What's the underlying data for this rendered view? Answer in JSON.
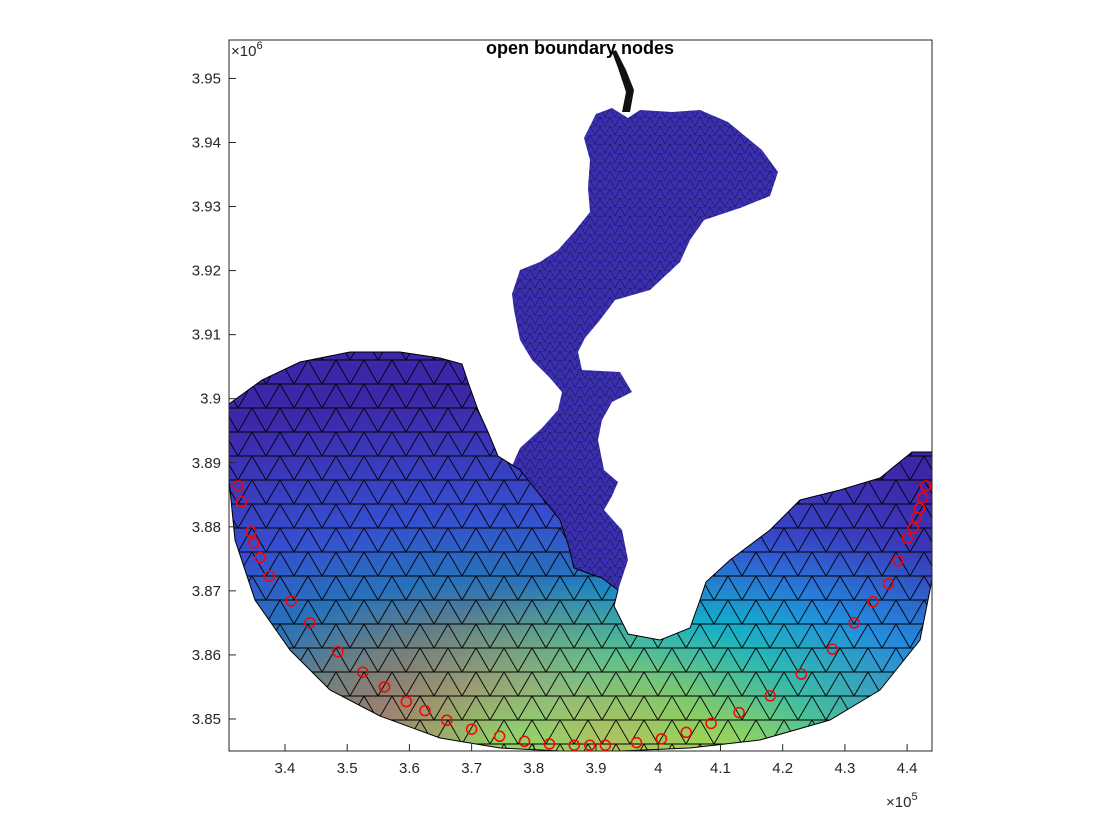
{
  "chart_data": {
    "type": "scatter",
    "title": "open boundary nodes",
    "xlabel": "",
    "ylabel": "",
    "x_exponent_label": "×10",
    "x_exponent_power": "5",
    "y_exponent_label": "×10",
    "y_exponent_power": "6",
    "xlim": [
      3.31,
      4.44
    ],
    "ylim": [
      3.845,
      3.956
    ],
    "x_ticks": [
      3.4,
      3.5,
      3.6,
      3.7,
      3.8,
      3.9,
      4.0,
      4.1,
      4.2,
      4.3,
      4.4
    ],
    "x_tick_labels": [
      "3.4",
      "3.5",
      "3.6",
      "3.7",
      "3.8",
      "3.9",
      "4",
      "4.1",
      "4.2",
      "4.3",
      "4.4"
    ],
    "y_ticks": [
      3.85,
      3.86,
      3.87,
      3.88,
      3.89,
      3.9,
      3.91,
      3.92,
      3.93,
      3.94,
      3.95
    ],
    "y_tick_labels": [
      "3.85",
      "3.86",
      "3.87",
      "3.88",
      "3.89",
      "3.9",
      "3.91",
      "3.92",
      "3.93",
      "3.94",
      "3.95"
    ],
    "grid": false,
    "marker_color": "#ff0000",
    "mesh_colormap": [
      "#3e26a8",
      "#2f6ff0",
      "#13b0c9",
      "#6ecc74",
      "#f7c33a",
      "#f9fb15"
    ],
    "series": [
      {
        "x": [
          3.325,
          3.33,
          3.345,
          3.35,
          3.36,
          3.375,
          3.41,
          3.44,
          3.485,
          3.525,
          3.56,
          3.595,
          3.625,
          3.66,
          3.7,
          3.745,
          3.785,
          3.825,
          3.865,
          3.89,
          3.915,
          3.965,
          4.005,
          4.045,
          4.085,
          4.13,
          4.18,
          4.23,
          4.28,
          4.315,
          4.345,
          4.37,
          4.385,
          4.4,
          4.41,
          4.415,
          4.42,
          4.425,
          4.43
        ],
        "y": [
          3.8864,
          3.8839,
          3.8792,
          3.8775,
          3.8752,
          3.8723,
          3.8684,
          3.865,
          3.8605,
          3.8573,
          3.855,
          3.8527,
          3.8513,
          3.8498,
          3.8484,
          3.8473,
          3.8465,
          3.8461,
          3.8459,
          3.8459,
          3.8459,
          3.8463,
          3.8469,
          3.8479,
          3.8493,
          3.851,
          3.8536,
          3.857,
          3.8609,
          3.865,
          3.8683,
          3.8711,
          3.8747,
          3.8782,
          3.8798,
          3.8815,
          3.8829,
          3.8845,
          3.8864
        ]
      }
    ]
  }
}
